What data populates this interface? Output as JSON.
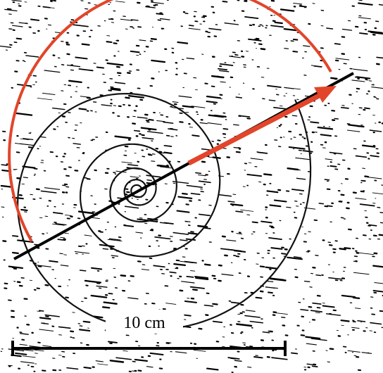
{
  "scale_label": "10 cm"
}
